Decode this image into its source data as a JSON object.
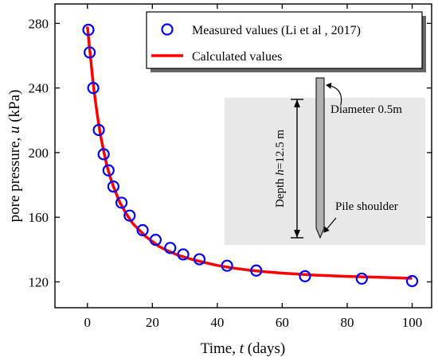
{
  "chart_data": {
    "type": "scatter",
    "xlabel": {
      "prefix": "Time, ",
      "var": "t",
      "suffix": " (days)"
    },
    "ylabel": {
      "prefix": "pore pressure, ",
      "var": "u",
      "suffix": " (kPa)"
    },
    "xlim": [
      -10,
      106
    ],
    "ylim": [
      104,
      292
    ],
    "xticks": [
      0,
      20,
      40,
      60,
      80,
      100
    ],
    "yticks": [
      120,
      160,
      200,
      240,
      280
    ],
    "grid": false,
    "legend_position": "top-right",
    "series": [
      {
        "name": "Measured values (Li et al , 2017)",
        "kind": "markers",
        "color": "#0000ff",
        "x": [
          0.3,
          0.7,
          1.8,
          3.5,
          5,
          6.5,
          8,
          10.5,
          13,
          17,
          21,
          25.5,
          29.5,
          34.5,
          43,
          52,
          67,
          84.5,
          100
        ],
        "y": [
          276,
          262,
          240,
          214,
          199,
          189,
          179,
          169,
          161,
          152,
          146,
          141,
          137,
          134,
          130,
          127,
          123.5,
          122,
          120.5
        ]
      },
      {
        "name": "Calculated values",
        "kind": "line",
        "color": "#ff0000",
        "x": [
          0,
          0.5,
          1,
          1.5,
          2,
          3,
          4,
          5,
          6,
          7,
          8,
          9,
          10,
          12,
          14,
          16,
          18,
          20,
          22,
          25,
          28,
          32,
          36,
          40,
          45,
          50,
          55,
          60,
          70,
          80,
          90,
          100
        ],
        "y": [
          278,
          268,
          258,
          248,
          239,
          224,
          211,
          201,
          192,
          185,
          179,
          174,
          169,
          162,
          156,
          152,
          148,
          145,
          142,
          139,
          136.5,
          134,
          132,
          130.2,
          128.5,
          127.2,
          126.2,
          125.4,
          124.2,
          123.4,
          122.8,
          122.2
        ]
      }
    ]
  },
  "inset": {
    "depth_label_prefix": "Depth ",
    "depth_label_var": "h",
    "depth_label_suffix": "=12.5 m",
    "diameter_label": "Diameter 0.5m",
    "shoulder_label": "Pile shoulder"
  }
}
